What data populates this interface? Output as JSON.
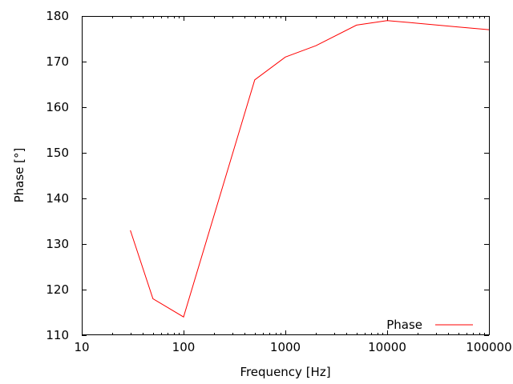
{
  "chart_data": {
    "type": "line",
    "title": "",
    "xlabel": "Frequency [Hz]",
    "ylabel": "Phase [°]",
    "x_scale": "log",
    "xlim": [
      10,
      100000
    ],
    "ylim": [
      110,
      180
    ],
    "x_tick_labels": [
      "10",
      "100",
      "1000",
      "10000",
      "100000"
    ],
    "x_tick_values": [
      10,
      100,
      1000,
      10000,
      100000
    ],
    "y_tick_values": [
      110,
      120,
      130,
      140,
      150,
      160,
      170,
      180
    ],
    "y_tick_labels": [
      "110",
      "120",
      "130",
      "140",
      "150",
      "160",
      "170",
      "180"
    ],
    "grid": false,
    "legend_position": "inside-bottom-right",
    "series": [
      {
        "name": "Phase",
        "color": "#ff0000",
        "x": [
          30,
          50,
          100,
          500,
          1000,
          2000,
          5000,
          10000,
          20000,
          50000,
          100000
        ],
        "y": [
          133,
          118,
          114,
          166,
          171,
          173.5,
          178,
          179,
          178.4,
          177.6,
          177
        ]
      }
    ],
    "colors": {
      "axis": "#000000",
      "text": "#000000",
      "background": "#ffffff"
    }
  }
}
